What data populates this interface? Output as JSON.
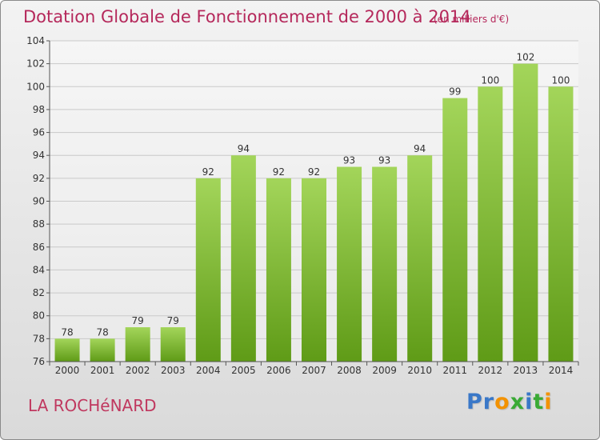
{
  "header": {
    "title": "Dotation Globale de Fonctionnement de 2000 à 2014",
    "subtitle": "(en milliers d'€)"
  },
  "footer": {
    "commune": "LA ROCHéNARD"
  },
  "logo": {
    "text": "Proxiti",
    "letter_colors": [
      "#3a78c8",
      "#3a78c8",
      "#f39200",
      "#3aaa35",
      "#3a78c8",
      "#3aaa35",
      "#f39200"
    ]
  },
  "colors": {
    "title": "#b5285b",
    "bar_light": "#a3d55a",
    "bar_dark": "#5f9b17",
    "axis": "#555555",
    "grid": "#c9c9c9"
  },
  "chart_data": {
    "type": "bar",
    "categories": [
      "2000",
      "2001",
      "2002",
      "2003",
      "2004",
      "2005",
      "2006",
      "2007",
      "2008",
      "2009",
      "2010",
      "2011",
      "2012",
      "2013",
      "2014"
    ],
    "values": [
      78,
      78,
      79,
      79,
      92,
      94,
      92,
      92,
      93,
      93,
      94,
      99,
      100,
      102,
      100
    ],
    "title": "Dotation Globale de Fonctionnement de 2000 à 2014",
    "ylim": [
      76,
      104
    ],
    "yticks": [
      76,
      78,
      80,
      82,
      84,
      86,
      88,
      90,
      92,
      94,
      96,
      98,
      100,
      102,
      104
    ],
    "grid": true,
    "data_labels": true
  }
}
